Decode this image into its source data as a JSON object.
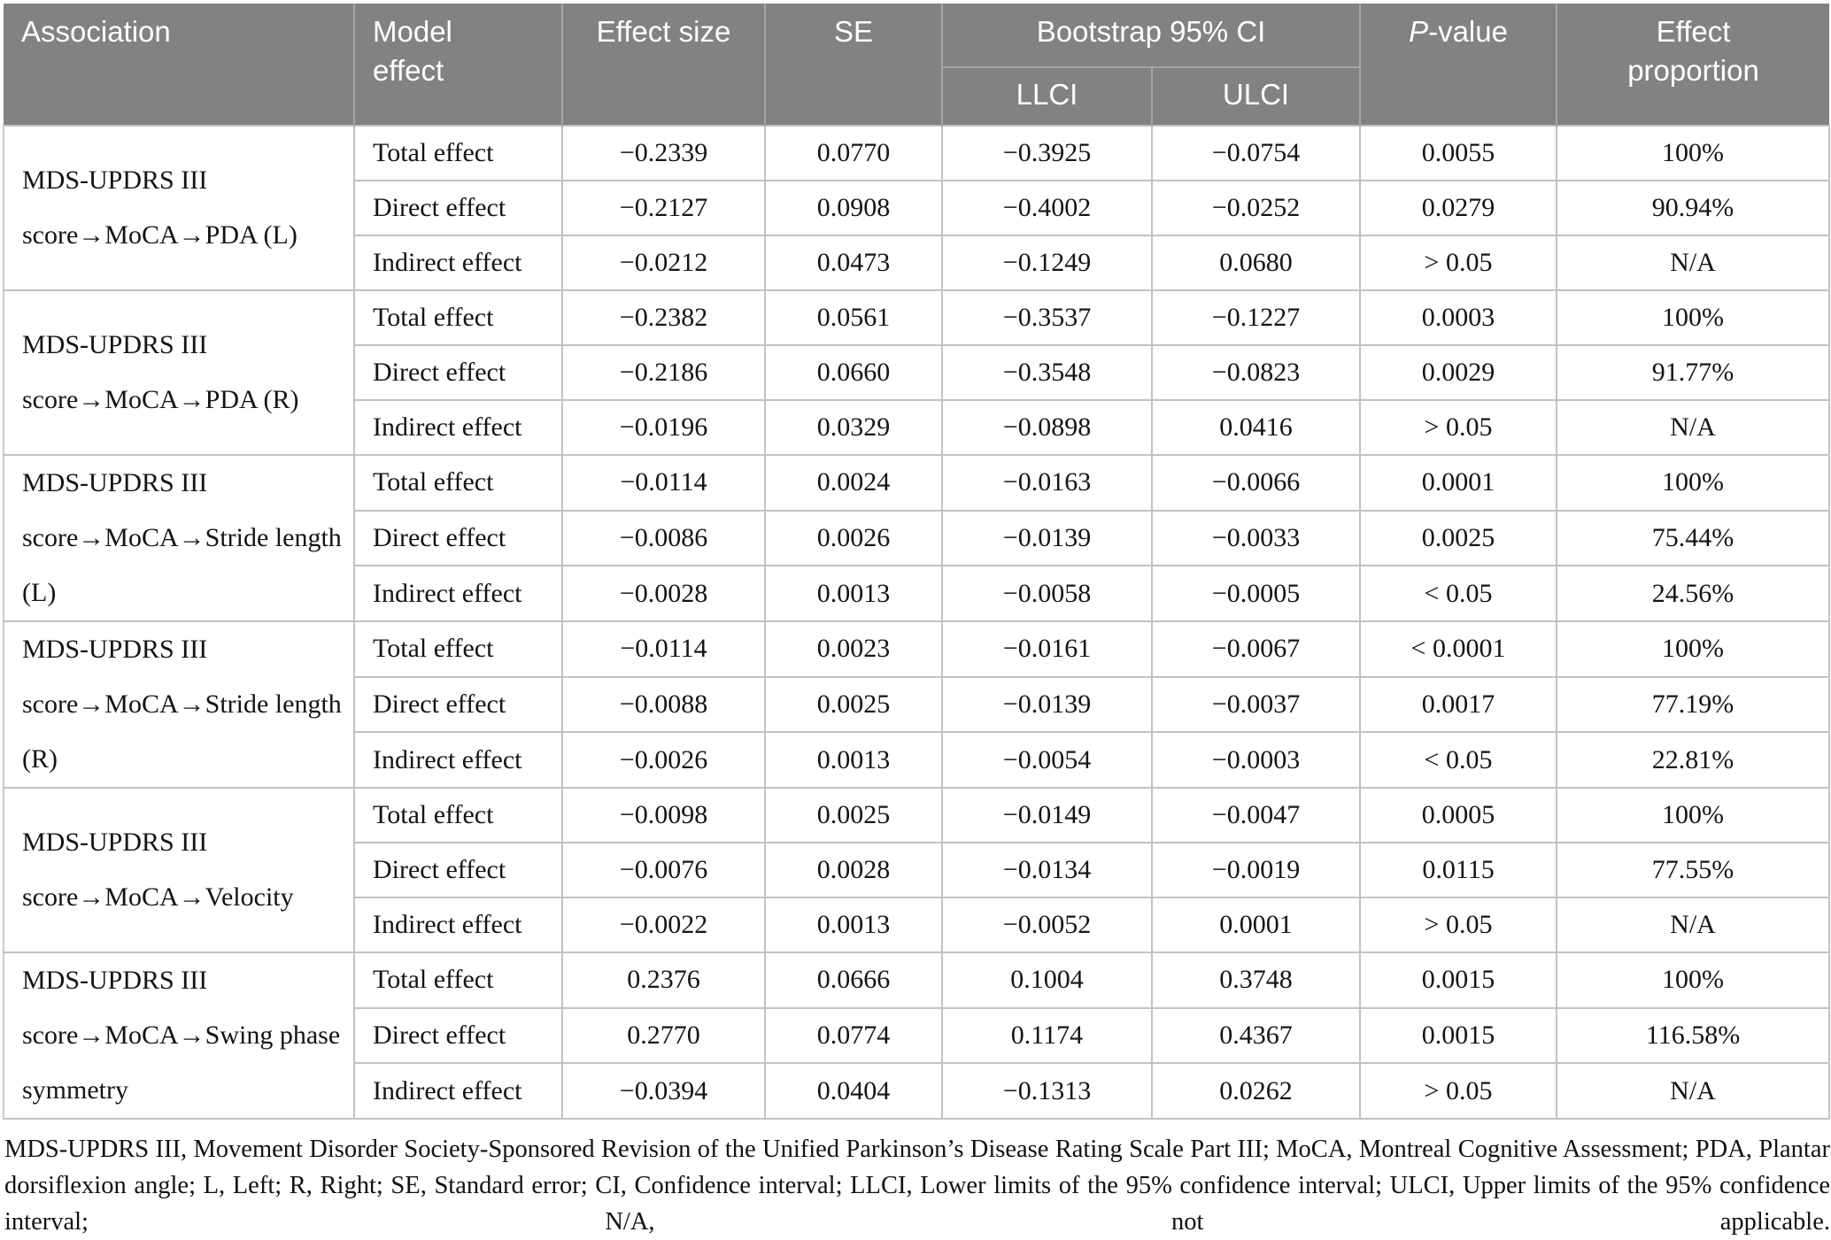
{
  "colors": {
    "header_bg": "#828282",
    "header_text": "#ffffff",
    "header_divider": "#a6a6a6",
    "body_border": "#c2c2c2"
  },
  "header": {
    "association": "Association",
    "model_effect": "Model effect",
    "effect_size": "Effect size",
    "se": "SE",
    "bootstrap_ci": "Bootstrap 95% CI",
    "llci": "LLCI",
    "ulci": "ULCI",
    "p_value_italic": "P",
    "p_value_rest": "-value",
    "effect_proportion": "Effect proportion"
  },
  "groups": [
    {
      "lines": [
        "MDS-UPDRS III",
        "score→MoCA→PDA (L)"
      ],
      "rows": [
        {
          "model_effect": "Total effect",
          "effect_size": "−0.2339",
          "se": "0.0770",
          "llci": "−0.3925",
          "ulci": "−0.0754",
          "p_value": "0.0055",
          "effect_proportion": "100%"
        },
        {
          "model_effect": "Direct effect",
          "effect_size": "−0.2127",
          "se": "0.0908",
          "llci": "−0.4002",
          "ulci": "−0.0252",
          "p_value": "0.0279",
          "effect_proportion": "90.94%"
        },
        {
          "model_effect": "Indirect effect",
          "effect_size": "−0.0212",
          "se": "0.0473",
          "llci": "−0.1249",
          "ulci": "0.0680",
          "p_value": "> 0.05",
          "effect_proportion": "N/A"
        }
      ]
    },
    {
      "lines": [
        "MDS-UPDRS III",
        "score→MoCA→PDA (R)"
      ],
      "rows": [
        {
          "model_effect": "Total effect",
          "effect_size": "−0.2382",
          "se": "0.0561",
          "llci": "−0.3537",
          "ulci": "−0.1227",
          "p_value": "0.0003",
          "effect_proportion": "100%"
        },
        {
          "model_effect": "Direct effect",
          "effect_size": "−0.2186",
          "se": "0.0660",
          "llci": "−0.3548",
          "ulci": "−0.0823",
          "p_value": "0.0029",
          "effect_proportion": "91.77%"
        },
        {
          "model_effect": "Indirect effect",
          "effect_size": "−0.0196",
          "se": "0.0329",
          "llci": "−0.0898",
          "ulci": "0.0416",
          "p_value": "> 0.05",
          "effect_proportion": "N/A"
        }
      ]
    },
    {
      "lines": [
        "MDS-UPDRS III",
        "score→MoCA→Stride length",
        "(L)"
      ],
      "rows": [
        {
          "model_effect": "Total effect",
          "effect_size": "−0.0114",
          "se": "0.0024",
          "llci": "−0.0163",
          "ulci": "−0.0066",
          "p_value": "0.0001",
          "effect_proportion": "100%"
        },
        {
          "model_effect": "Direct effect",
          "effect_size": "−0.0086",
          "se": "0.0026",
          "llci": "−0.0139",
          "ulci": "−0.0033",
          "p_value": "0.0025",
          "effect_proportion": "75.44%"
        },
        {
          "model_effect": "Indirect effect",
          "effect_size": "−0.0028",
          "se": "0.0013",
          "llci": "−0.0058",
          "ulci": "−0.0005",
          "p_value": "< 0.05",
          "effect_proportion": "24.56%"
        }
      ]
    },
    {
      "lines": [
        "MDS-UPDRS III",
        "score→MoCA→Stride length",
        "(R)"
      ],
      "rows": [
        {
          "model_effect": "Total effect",
          "effect_size": "−0.0114",
          "se": "0.0023",
          "llci": "−0.0161",
          "ulci": "−0.0067",
          "p_value": "< 0.0001",
          "effect_proportion": "100%"
        },
        {
          "model_effect": "Direct effect",
          "effect_size": "−0.0088",
          "se": "0.0025",
          "llci": "−0.0139",
          "ulci": "−0.0037",
          "p_value": "0.0017",
          "effect_proportion": "77.19%"
        },
        {
          "model_effect": "Indirect effect",
          "effect_size": "−0.0026",
          "se": "0.0013",
          "llci": "−0.0054",
          "ulci": "−0.0003",
          "p_value": "< 0.05",
          "effect_proportion": "22.81%"
        }
      ]
    },
    {
      "lines": [
        "MDS-UPDRS III",
        "score→MoCA→Velocity"
      ],
      "rows": [
        {
          "model_effect": "Total effect",
          "effect_size": "−0.0098",
          "se": "0.0025",
          "llci": "−0.0149",
          "ulci": "−0.0047",
          "p_value": "0.0005",
          "effect_proportion": "100%"
        },
        {
          "model_effect": "Direct effect",
          "effect_size": "−0.0076",
          "se": "0.0028",
          "llci": "−0.0134",
          "ulci": "−0.0019",
          "p_value": "0.0115",
          "effect_proportion": "77.55%"
        },
        {
          "model_effect": "Indirect effect",
          "effect_size": "−0.0022",
          "se": "0.0013",
          "llci": "−0.0052",
          "ulci": "0.0001",
          "p_value": "> 0.05",
          "effect_proportion": "N/A"
        }
      ]
    },
    {
      "lines": [
        "MDS-UPDRS III",
        "score→MoCA→Swing phase",
        "symmetry"
      ],
      "rows": [
        {
          "model_effect": "Total effect",
          "effect_size": "0.2376",
          "se": "0.0666",
          "llci": "0.1004",
          "ulci": "0.3748",
          "p_value": "0.0015",
          "effect_proportion": "100%"
        },
        {
          "model_effect": "Direct effect",
          "effect_size": "0.2770",
          "se": "0.0774",
          "llci": "0.1174",
          "ulci": "0.4367",
          "p_value": "0.0015",
          "effect_proportion": "116.58%"
        },
        {
          "model_effect": "Indirect effect",
          "effect_size": "−0.0394",
          "se": "0.0404",
          "llci": "−0.1313",
          "ulci": "0.0262",
          "p_value": "> 0.05",
          "effect_proportion": "N/A"
        }
      ]
    }
  ],
  "footnote": "MDS-UPDRS III, Movement Disorder Society-Sponsored Revision of the Unified Parkinson’s Disease Rating Scale Part III; MoCA, Montreal Cognitive Assessment; PDA, Plantar dorsiflexion angle; L, Left; R, Right; SE, Standard error; CI, Confidence interval; LLCI, Lower limits of the 95% confidence interval; ULCI, Upper limits of the 95% confidence interval; N/A, not applicable."
}
